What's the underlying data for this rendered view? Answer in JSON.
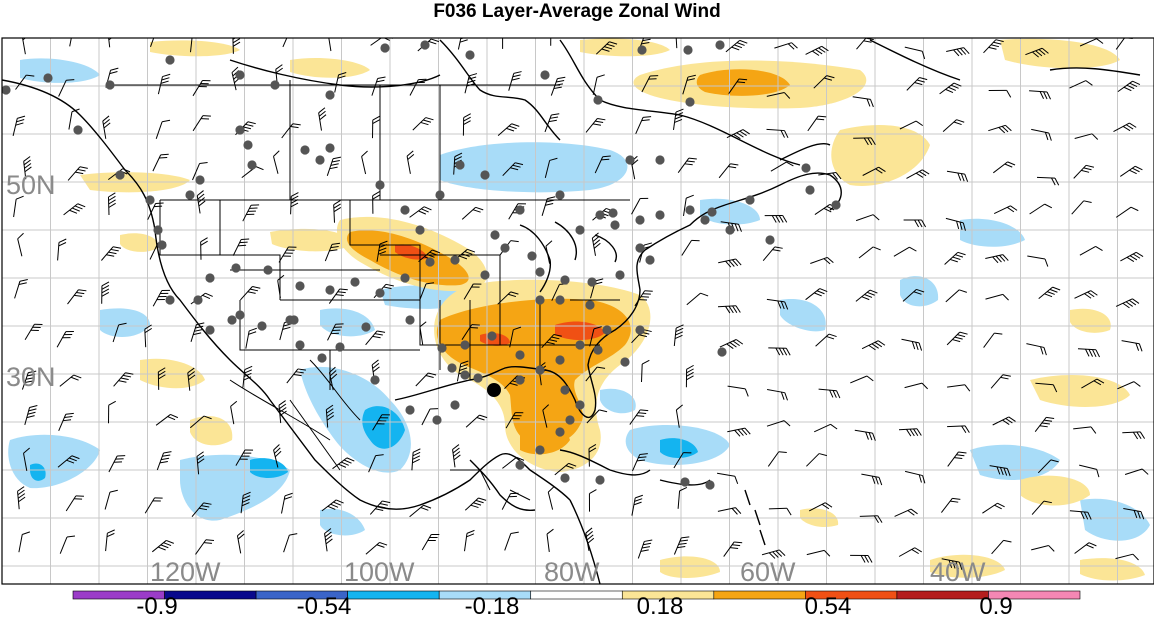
{
  "title": "F036 Layer-Average Zonal Wind",
  "lat_labels": [
    "50N",
    "30N"
  ],
  "lon_labels": [
    "120W",
    "100W",
    "80W",
    "60W",
    "40W"
  ],
  "colorbar": {
    "colors": [
      "#9b3cc8",
      "#0a0a8c",
      "#3a64c8",
      "#14b4f0",
      "#a8dcf8",
      "#ffffff",
      "#fbe596",
      "#f5a514",
      "#f05014",
      "#b41e1e",
      "#f587b4"
    ],
    "tick_labels": [
      "-0.9",
      "-0.54",
      "-0.18",
      "0.18",
      "0.54",
      "0.9"
    ]
  },
  "colors": {
    "light_blue": "#a8dcf8",
    "blue": "#14b4f0",
    "light_yellow": "#fbe596",
    "orange": "#f5a514",
    "red_orange": "#f05014",
    "grid": "#c8c8c8",
    "stations": "#555555",
    "coast": "#000000"
  },
  "icons": [
    "station-dot",
    "wind-barb",
    "storm-center-marker"
  ]
}
